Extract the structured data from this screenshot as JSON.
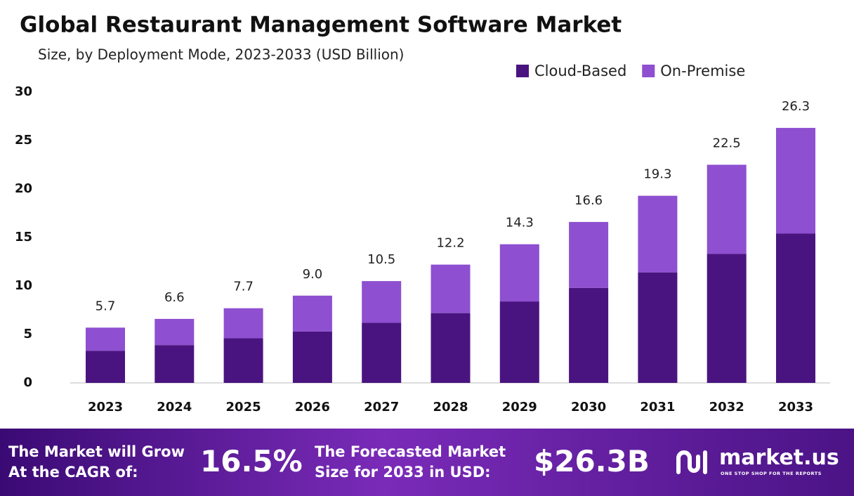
{
  "chart_data": {
    "type": "stacked_bar",
    "title": "Global Restaurant Management Software Market",
    "subtitle": "Size, by Deployment Mode, 2023-2033 (USD Billion)",
    "categories": [
      "2023",
      "2024",
      "2025",
      "2026",
      "2027",
      "2028",
      "2029",
      "2030",
      "2031",
      "2032",
      "2033"
    ],
    "series": [
      {
        "name": "Cloud-Based",
        "color": "#4a1480",
        "values": [
          3.3,
          3.9,
          4.6,
          5.3,
          6.2,
          7.2,
          8.4,
          9.8,
          11.4,
          13.3,
          15.4
        ]
      },
      {
        "name": "On-Premise",
        "color": "#8e4fd0",
        "values": [
          2.4,
          2.7,
          3.1,
          3.7,
          4.3,
          5.0,
          5.9,
          6.8,
          7.9,
          9.2,
          10.9
        ]
      }
    ],
    "totals": {
      "values": [
        5.7,
        6.6,
        7.7,
        9.0,
        10.5,
        12.2,
        14.3,
        16.6,
        19.3,
        22.5,
        26.3
      ],
      "value_labels": [
        "5.7",
        "6.6",
        "7.7",
        "9.0",
        "10.5",
        "12.2",
        "14.3",
        "16.6",
        "19.3",
        "22.5",
        "26.3"
      ]
    },
    "ylim": [
      0,
      30
    ],
    "yticks": [
      0,
      5,
      10,
      15,
      20,
      25,
      30
    ],
    "grid": false,
    "legend": "top-right"
  },
  "footer": {
    "cagr_label": [
      "The Market will Grow",
      "At the CAGR of:"
    ],
    "cagr_value": "16.5%",
    "forecast_label": [
      "The Forecasted Market",
      "Size for 2033 in USD:"
    ],
    "forecast_value": "$26.3B",
    "brand": "market.us",
    "tagline": "ONE STOP SHOP FOR THE REPORTS"
  }
}
